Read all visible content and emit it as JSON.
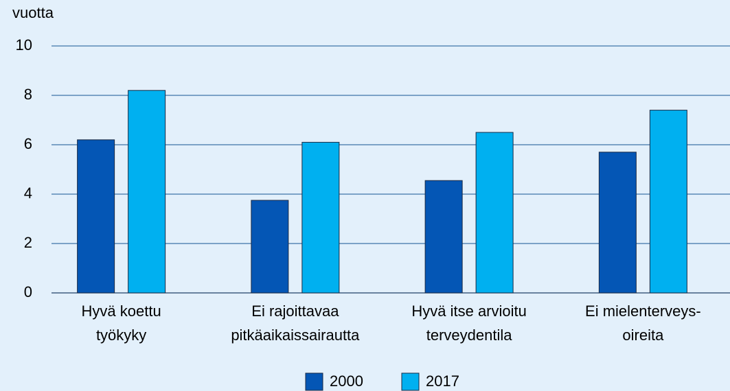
{
  "chart_data": {
    "type": "bar",
    "y_label": "vuotta",
    "categories": [
      [
        "Hyvä koettu",
        "työkyky"
      ],
      [
        "Ei rajoittavaa",
        "pitkäaikaissairautta"
      ],
      [
        "Hyvä itse arvioitu",
        "terveydentila"
      ],
      [
        "Ei mielenterveys-",
        "oireita"
      ]
    ],
    "series": [
      {
        "name": "2000",
        "color": "#0456b5",
        "values": [
          6.2,
          3.75,
          4.55,
          5.7
        ]
      },
      {
        "name": "2017",
        "color": "#00b0f0",
        "values": [
          8.2,
          6.1,
          6.5,
          7.4
        ]
      }
    ],
    "ylim": [
      0,
      10
    ],
    "yticks": [
      0,
      2,
      4,
      6,
      8,
      10
    ],
    "grid": true,
    "legend": "bottom"
  }
}
